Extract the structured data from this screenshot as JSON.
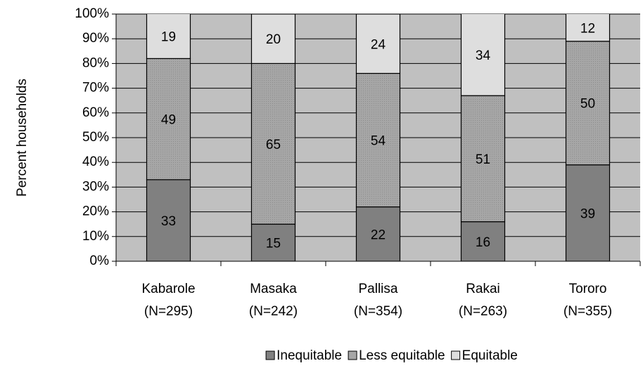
{
  "chart_data": {
    "type": "stacked_bar",
    "categories": [
      "Kabarole",
      "Masaka",
      "Pallisa",
      "Rakai",
      "Tororo"
    ],
    "category_sublabels": [
      "(N=295)",
      "(N=242)",
      "(N=354)",
      "(N=263)",
      "(N=355)"
    ],
    "y_label": "Percent households",
    "series": [
      {
        "name": "Inequitable",
        "color": "#808080",
        "values": [
          33,
          15,
          22,
          16,
          39
        ]
      },
      {
        "name": "Less equitable",
        "color": "#a6a6a6",
        "values": [
          49,
          65,
          54,
          51,
          50
        ]
      },
      {
        "name": "Equitable",
        "color": "#dedede",
        "values": [
          19,
          20,
          24,
          34,
          12
        ]
      }
    ],
    "ylim": [
      0,
      100
    ],
    "yticks": [
      {
        "value": 0,
        "label": "0%"
      },
      {
        "value": 10,
        "label": "10%"
      },
      {
        "value": 20,
        "label": "20%"
      },
      {
        "value": 30,
        "label": "30%"
      },
      {
        "value": 40,
        "label": "40%"
      },
      {
        "value": 50,
        "label": "50%"
      },
      {
        "value": 60,
        "label": "60%"
      },
      {
        "value": 70,
        "label": "70%"
      },
      {
        "value": 80,
        "label": "80%"
      },
      {
        "value": 90,
        "label": "90%"
      },
      {
        "value": 100,
        "label": "100%"
      }
    ],
    "grid": true,
    "plot_background": "#c0c0c0",
    "legend": "bottom"
  }
}
